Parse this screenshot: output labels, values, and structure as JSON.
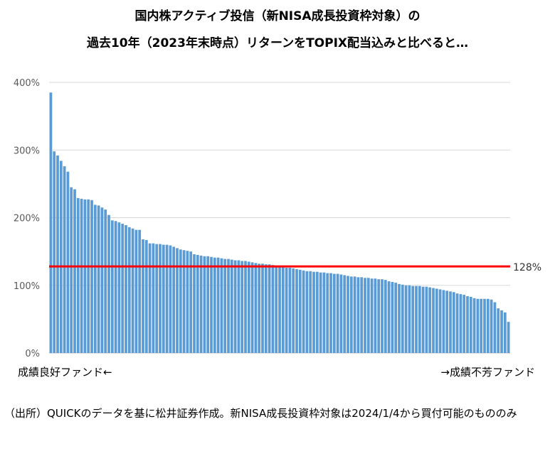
{
  "header": {
    "title_line1": "国内株アクティブ投信（新NISA成長投資枠対象）の",
    "title_line2": "過去10年（2023年末時点）リターンをTOPIX配当込みと比べると…"
  },
  "footer": {
    "note_left": "成績良好ファンド←",
    "note_right": "→成績不芳ファンド",
    "source": "（出所）QUICKのデータを基に松井証券作成。新NISA成長投資枠対象は2024/1/4から買付可能のもののみ"
  },
  "chart_data": {
    "type": "bar",
    "ylim": [
      0,
      400
    ],
    "yticks": [
      0,
      100,
      200,
      300,
      400
    ],
    "ytick_labels": [
      "0%",
      "100%",
      "200%",
      "300%",
      "400%"
    ],
    "grid": true,
    "bar_color": "#5b9bd5",
    "reference_line": {
      "value": 128,
      "label": "128%",
      "color": "#ff0000"
    },
    "values": [
      385,
      298,
      292,
      284,
      276,
      268,
      245,
      242,
      229,
      228,
      227,
      227,
      226,
      219,
      218,
      215,
      212,
      204,
      196,
      195,
      193,
      191,
      189,
      186,
      184,
      182,
      182,
      168,
      167,
      162,
      162,
      161,
      161,
      160,
      160,
      159,
      157,
      155,
      153,
      152,
      151,
      150,
      146,
      145,
      144,
      143,
      143,
      142,
      141,
      141,
      140,
      139,
      139,
      138,
      137,
      137,
      136,
      136,
      135,
      134,
      133,
      132,
      132,
      131,
      131,
      130,
      129,
      128,
      127,
      126,
      126,
      125,
      124,
      123,
      122,
      121,
      121,
      120,
      120,
      119,
      119,
      118,
      118,
      117,
      117,
      116,
      115,
      114,
      113,
      113,
      112,
      112,
      111,
      111,
      110,
      110,
      109,
      109,
      108,
      106,
      105,
      104,
      102,
      101,
      100,
      100,
      99,
      99,
      99,
      98,
      98,
      97,
      96,
      95,
      94,
      93,
      92,
      91,
      90,
      88,
      87,
      86,
      84,
      83,
      81,
      80,
      80,
      80,
      80,
      79,
      75,
      66,
      63,
      60,
      46
    ]
  }
}
